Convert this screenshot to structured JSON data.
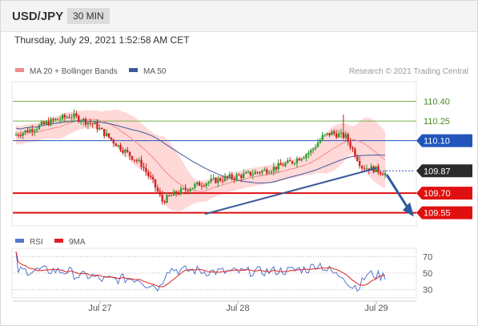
{
  "header": {
    "symbol": "USD/JPY",
    "timeframe": "30 MIN"
  },
  "datetime": "Thursday, July 29, 2021 1:52:58 AM CET",
  "legend_top": [
    {
      "label": "MA 20 + Bollinger Bands",
      "color": "#f28a8a"
    },
    {
      "label": "MA 50",
      "color": "#3a5a98"
    }
  ],
  "credit": "Research © 2021 Trading Central",
  "legend_bottom": [
    {
      "label": "RSI",
      "color": "#5577cc"
    },
    {
      "label": "9MA",
      "color": "#e02020"
    }
  ],
  "chart_data": [
    {
      "type": "candlestick",
      "x_labels": [
        "Jul 27",
        "Jul 28",
        "Jul 29"
      ],
      "ylim": [
        109.45,
        110.55
      ],
      "levels": [
        {
          "value": 110.4,
          "label": "110.40",
          "style": "green-line"
        },
        {
          "value": 110.25,
          "label": "110.25",
          "style": "green-line"
        },
        {
          "value": 110.1,
          "label": "110.10",
          "style": "blue-resistance"
        },
        {
          "value": 109.87,
          "label": "109.87",
          "style": "last-price"
        },
        {
          "value": 109.7,
          "label": "109.70",
          "style": "red-support"
        },
        {
          "value": 109.55,
          "label": "109.55",
          "style": "red-support"
        }
      ],
      "series": [
        {
          "name": "MA 20 + Bollinger Bands",
          "color": "#f28a8a"
        },
        {
          "name": "MA 50",
          "color": "#3a5a98"
        }
      ],
      "forecast": "bearish arrow toward 109.55"
    },
    {
      "type": "line",
      "ylim": [
        20,
        80
      ],
      "y_ticks": [
        70,
        50,
        30
      ],
      "series": [
        {
          "name": "RSI",
          "color": "#5577cc"
        },
        {
          "name": "9MA",
          "color": "#e02020"
        }
      ]
    }
  ],
  "colors": {
    "up": "#2d9b2d",
    "down": "#d22020",
    "support": "#e01010",
    "resistance": "#2255bb",
    "band": "#ffd4d4",
    "trend": "#3a5a98"
  }
}
